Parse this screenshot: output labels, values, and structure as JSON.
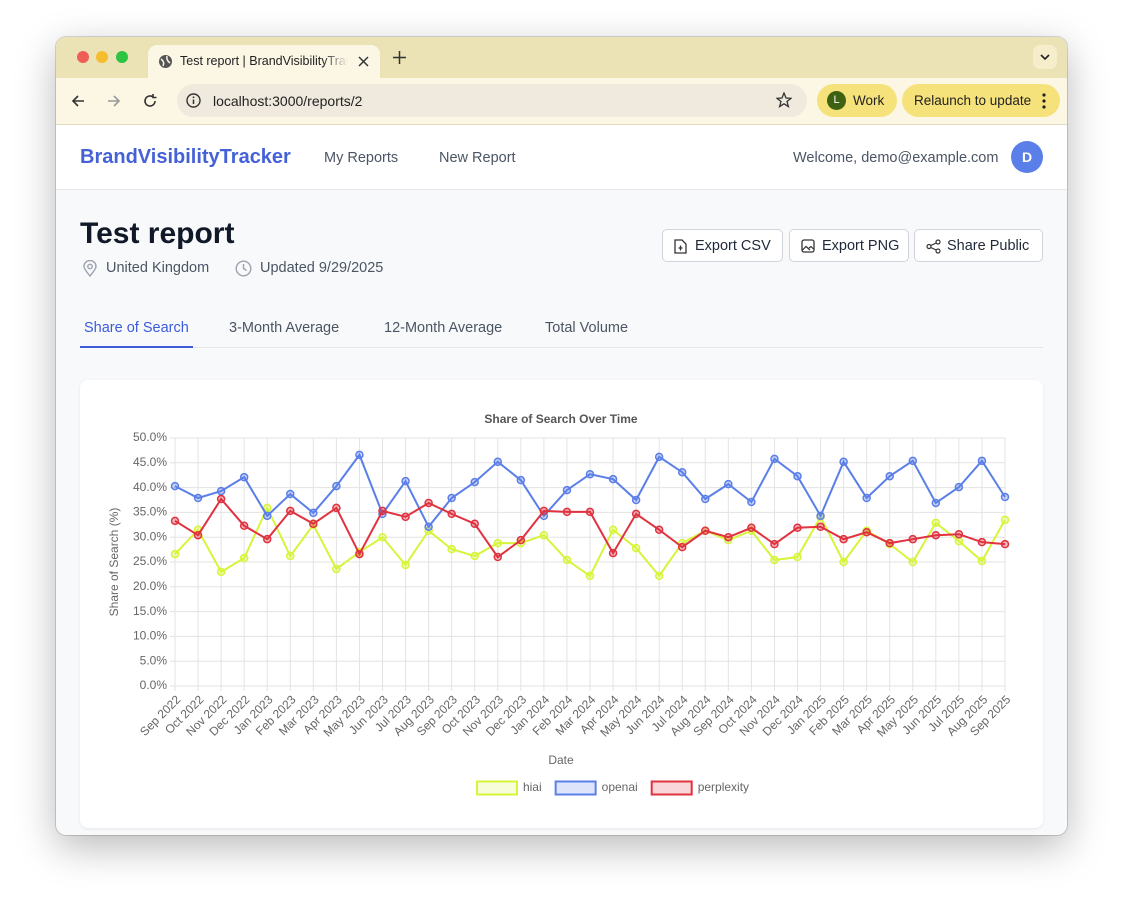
{
  "browser": {
    "tab_title": "Test report | BrandVisibilityTracker",
    "url": "localhost:3000/reports/2",
    "profile_initial": "L",
    "profile": "Work",
    "update_button": "Relaunch to update"
  },
  "nav": {
    "brand": "BrandVisibilityTracker",
    "links": [
      "My Reports",
      "New Report"
    ],
    "welcome": "Welcome, demo@example.com",
    "avatar": "D"
  },
  "header": {
    "title": "Test report",
    "location": "United Kingdom",
    "updated": "Updated 9/29/2025",
    "actions": [
      "Export CSV",
      "Export PNG",
      "Share Public"
    ]
  },
  "tabs": [
    "Share of Search",
    "3-Month Average",
    "12-Month Average",
    "Total Volume"
  ],
  "chart_data": {
    "type": "line",
    "title": "Share of Search Over Time",
    "xlabel": "Date",
    "ylabel": "Share of Search (%)",
    "categories": [
      "Sep 2022",
      "Oct 2022",
      "Nov 2022",
      "Dec 2022",
      "Jan 2023",
      "Feb 2023",
      "Mar 2023",
      "Apr 2023",
      "May 2023",
      "Jun 2023",
      "Jul 2023",
      "Aug 2023",
      "Sep 2023",
      "Oct 2023",
      "Nov 2023",
      "Dec 2023",
      "Jan 2024",
      "Feb 2024",
      "Mar 2024",
      "Apr 2024",
      "May 2024",
      "Jun 2024",
      "Jul 2024",
      "Aug 2024",
      "Sep 2024",
      "Oct 2024",
      "Nov 2024",
      "Dec 2024",
      "Jan 2025",
      "Feb 2025",
      "Mar 2025",
      "Apr 2025",
      "May 2025",
      "Jun 2025",
      "Jul 2025",
      "Aug 2025",
      "Sep 2025"
    ],
    "series": [
      {
        "name": "hiai",
        "color": "#d6f53a",
        "values": [
          26.6,
          31.5,
          23.0,
          25.8,
          35.9,
          26.2,
          32.5,
          23.6,
          27.0,
          30.0,
          24.4,
          31.3,
          27.6,
          26.2,
          28.8,
          28.8,
          30.4,
          25.4,
          22.2,
          31.5,
          27.8,
          22.2,
          28.8,
          31.3,
          29.4,
          31.3,
          25.4,
          26.0,
          34.1,
          25.0,
          31.3,
          28.6,
          25.0,
          32.9,
          29.2,
          25.2,
          33.5
        ]
      },
      {
        "name": "openai",
        "color": "#5b7fe8",
        "values": [
          40.3,
          37.9,
          39.3,
          42.1,
          34.3,
          38.7,
          34.9,
          40.3,
          46.6,
          34.7,
          41.3,
          32.1,
          37.9,
          41.1,
          45.2,
          41.5,
          34.3,
          39.5,
          42.7,
          41.7,
          37.5,
          46.2,
          43.1,
          37.7,
          40.7,
          37.1,
          45.8,
          42.3,
          34.3,
          45.2,
          37.9,
          42.3,
          45.4,
          36.9,
          40.1,
          45.4,
          38.1
        ]
      },
      {
        "name": "perplexity",
        "color": "#e0323f",
        "values": [
          33.3,
          30.4,
          37.7,
          32.3,
          29.6,
          35.3,
          32.7,
          35.9,
          26.6,
          35.3,
          34.1,
          36.9,
          34.7,
          32.7,
          26.0,
          29.4,
          35.3,
          35.1,
          35.1,
          26.8,
          34.7,
          31.5,
          28.0,
          31.3,
          30.0,
          31.9,
          28.6,
          31.9,
          32.1,
          29.6,
          31.0,
          28.8,
          29.6,
          30.4,
          30.6,
          29.0,
          28.6
        ]
      }
    ],
    "ylim": [
      0,
      50
    ],
    "yticks": [
      {
        "value": 0,
        "label": "0.0%"
      },
      {
        "value": 5,
        "label": "5.0%"
      },
      {
        "value": 10,
        "label": "10.0%"
      },
      {
        "value": 15,
        "label": "15.0%"
      },
      {
        "value": 20,
        "label": "20.0%"
      },
      {
        "value": 25,
        "label": "25.0%"
      },
      {
        "value": 30,
        "label": "30.0%"
      },
      {
        "value": 35,
        "label": "35.0%"
      },
      {
        "value": 40,
        "label": "40.0%"
      },
      {
        "value": 45,
        "label": "45.0%"
      },
      {
        "value": 50,
        "label": "50.0%"
      }
    ],
    "grid": true,
    "legend": "bottom"
  }
}
